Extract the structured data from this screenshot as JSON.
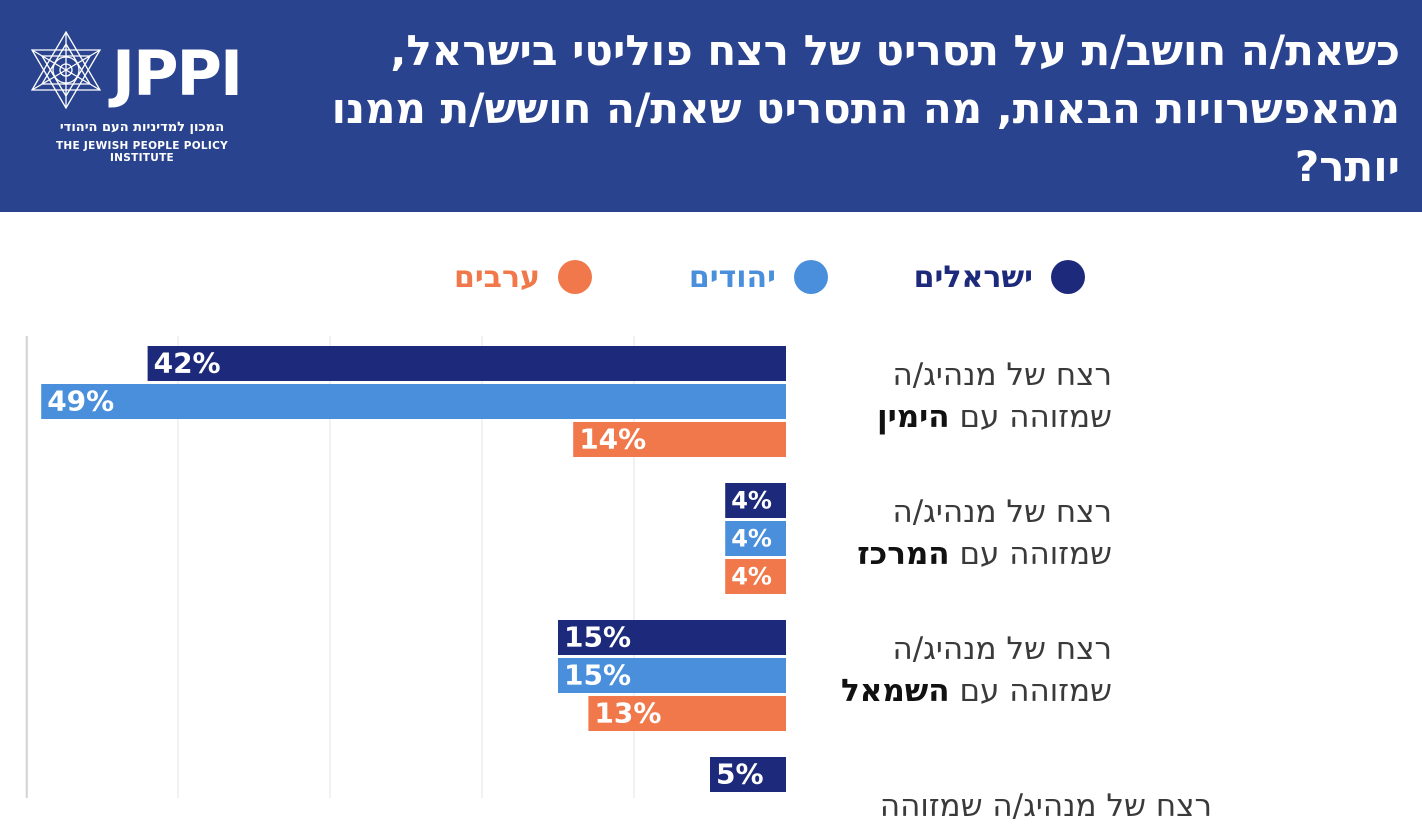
{
  "header": {
    "title": "כשאת/ה חושב/ת על תסריט של רצח פוליטי בישראל, מהאפשרויות הבאות, מה התסריט שאת/ה חושש/ת ממנו יותר?",
    "logo_text": "JPPI",
    "logo_hebrew": "המכון למדיניות העם היהודי",
    "logo_english": "THE JEWISH PEOPLE POLICY INSTITUTE",
    "colors": {
      "background": "#2a438e",
      "text": "#ffffff"
    }
  },
  "chart_data": {
    "type": "bar",
    "orientation": "horizontal",
    "direction": "right-to-left",
    "title": "כשאת/ה חושב/ת על תסריט של רצח פוליטי בישראל, מהאפשרויות הבאות, מה התסריט שאת/ה חושש/ת ממנו יותר?",
    "legend_position": "top",
    "grid": true,
    "xlim": [
      0,
      50
    ],
    "value_suffix": "%",
    "categories": [
      {
        "line1": "רצח של מנהיג/ה",
        "line2_prefix": "שמזוהה עם ",
        "line2_bold": "הימין"
      },
      {
        "line1": "רצח של מנהיג/ה",
        "line2_prefix": "שמזוהה עם ",
        "line2_bold": "המרכז"
      },
      {
        "line1": "רצח של מנהיג/ה",
        "line2_prefix": "שמזוהה עם ",
        "line2_bold": "השמאל"
      },
      {
        "line1": "רצח של מנהיג/ה שמזוהה",
        "line2_prefix": "",
        "line2_bold": ""
      }
    ],
    "series": [
      {
        "name": "ישראלים",
        "color": "#1d2a7c",
        "values": [
          42,
          4,
          15,
          5
        ]
      },
      {
        "name": "יהודים",
        "color": "#4a8fdc",
        "values": [
          49,
          4,
          15,
          null
        ]
      },
      {
        "name": "ערבים",
        "color": "#f0784a",
        "values": [
          14,
          4,
          13,
          null
        ]
      }
    ]
  }
}
